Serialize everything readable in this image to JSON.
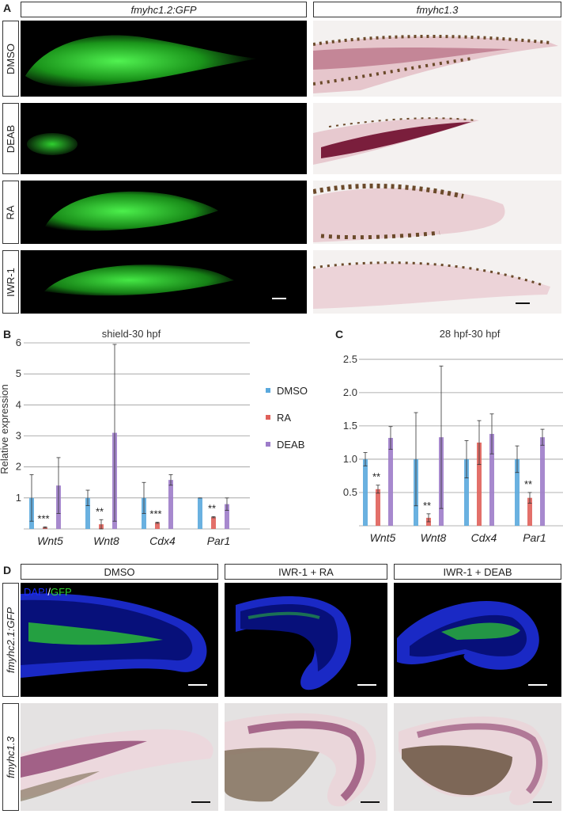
{
  "panel_a": {
    "letter": "A",
    "col_headers": [
      "fmyhc1.2:GFP",
      "fmyhc1.3"
    ],
    "row_labels": [
      "DMSO",
      "DEAB",
      "RA",
      "IWR-1"
    ]
  },
  "panel_b": {
    "letter": "B"
  },
  "panel_c": {
    "letter": "C"
  },
  "panel_d": {
    "letter": "D",
    "col_headers": [
      "DMSO",
      "IWR-1 + RA",
      "IWR-1 + DEAB"
    ],
    "row_labels": [
      "fmyhc2.1:GFP",
      "fmyhc1.3"
    ],
    "stain_dapi": "DAPI",
    "stain_sep": "/",
    "stain_gfp": "GFP"
  },
  "colors": {
    "DMSO": "#5aa9dd",
    "RA": "#e0605a",
    "DEAB": "#9d7cc9",
    "gfp": "#2fd02f",
    "dapi": "#1a2bff"
  },
  "chart_data": [
    {
      "type": "bar",
      "title": "shield-30 hpf",
      "ylabel": "Relative expression",
      "categories": [
        "Wnt5",
        "Wnt8",
        "Cdx4",
        "Par1"
      ],
      "ylim": [
        0,
        6
      ],
      "yticks": [
        1,
        2,
        3,
        4,
        5,
        6
      ],
      "grid": true,
      "legend_position": "right",
      "series": [
        {
          "name": "DMSO",
          "values": [
            1.0,
            1.0,
            1.0,
            1.0
          ],
          "errors": [
            0.75,
            0.25,
            0.5,
            0.0
          ]
        },
        {
          "name": "RA",
          "values": [
            0.05,
            0.15,
            0.2,
            0.38
          ],
          "errors": [
            0.02,
            0.15,
            0.02,
            0.02
          ]
        },
        {
          "name": "DEAB",
          "values": [
            1.4,
            3.1,
            1.58,
            0.8
          ],
          "errors": [
            0.9,
            2.85,
            0.17,
            0.2
          ]
        }
      ],
      "annotations": [
        "***",
        "**",
        "***",
        "**"
      ]
    },
    {
      "type": "bar",
      "title": "28 hpf-30 hpf",
      "categories": [
        "Wnt5",
        "Wnt8",
        "Cdx4",
        "Par1"
      ],
      "ylim": [
        0,
        2.7
      ],
      "yticks": [
        "0.5",
        "1.0",
        "1.5",
        "2.0",
        "2.5"
      ],
      "grid": true,
      "series": [
        {
          "name": "DMSO",
          "values": [
            1.0,
            1.0,
            1.0,
            1.0
          ],
          "errors": [
            0.1,
            0.7,
            0.28,
            0.2
          ]
        },
        {
          "name": "RA",
          "values": [
            0.55,
            0.12,
            1.25,
            0.42
          ],
          "errors": [
            0.06,
            0.06,
            0.33,
            0.08
          ]
        },
        {
          "name": "DEAB",
          "values": [
            1.32,
            1.33,
            1.38,
            1.33
          ],
          "errors": [
            0.17,
            1.07,
            0.3,
            0.12
          ]
        }
      ],
      "annotations": [
        "**",
        "**",
        "",
        "**"
      ]
    }
  ]
}
